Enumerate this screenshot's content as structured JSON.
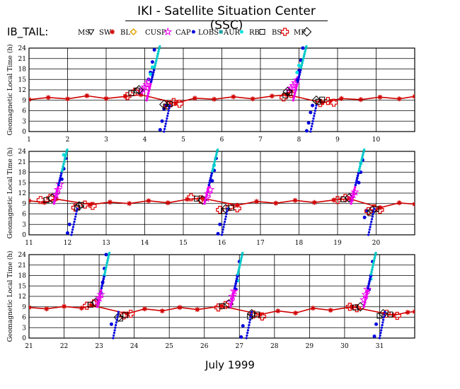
{
  "header": {
    "title": "IKI - Satellite Situation Center (SSC)",
    "region": "IB_TAIL:",
    "footer": "July    1999"
  },
  "legend": [
    {
      "label": "MS",
      "symbol": "triangle-down",
      "color": "#000000"
    },
    {
      "label": "SW",
      "symbol": "asterisk",
      "color": "#d00000"
    },
    {
      "label": "BL",
      "symbol": "diamond",
      "color": "#e0a000"
    },
    {
      "label": "CUSP",
      "symbol": "star",
      "color": "#ee00ee"
    },
    {
      "label": "CAP",
      "symbol": "dot",
      "color": "#0000dd"
    },
    {
      "label": "LOBS",
      "symbol": "square-small",
      "color": "#20a0a0"
    },
    {
      "label": "AUR",
      "symbol": "dot-cyan",
      "color": "#00e0e0"
    },
    {
      "label": "RB",
      "symbol": "square-open",
      "color": "#000000"
    },
    {
      "label": "BS",
      "symbol": "cross-open",
      "color": "#e00000"
    },
    {
      "label": "MP",
      "symbol": "diamond-open",
      "color": "#000000"
    }
  ],
  "chart_data": [
    {
      "type": "scatter",
      "ylabel": "Geomagnetic Local Time (h)",
      "xlim": [
        1,
        11
      ],
      "ylim": [
        0,
        24
      ],
      "yticks": [
        0,
        3,
        6,
        9,
        12,
        15,
        18,
        21,
        24
      ],
      "xticks": [
        1,
        2,
        3,
        4,
        5,
        6,
        7,
        8,
        9,
        10
      ],
      "xtick_labels": [
        "1",
        "2",
        "3",
        "4",
        "5",
        "6",
        "7",
        "8",
        "9",
        "10"
      ],
      "grid": true,
      "passes": [
        4.3,
        8.1
      ],
      "series": [
        {
          "name": "SW",
          "color": "#d00000",
          "x": [
            1.0,
            1.5,
            2.0,
            2.5,
            3.0,
            3.5,
            3.9,
            4.8,
            5.3,
            5.8,
            6.3,
            6.8,
            7.3,
            7.7,
            8.6,
            9.1,
            9.6,
            10.1,
            10.6,
            11.0
          ],
          "y": [
            9.2,
            9.8,
            9.4,
            10.3,
            9.5,
            10.1,
            10.6,
            8.2,
            9.6,
            9.3,
            10.0,
            9.4,
            10.2,
            10.6,
            8.3,
            9.5,
            9.2,
            9.9,
            9.4,
            10.1
          ]
        },
        {
          "name": "CAP",
          "color": "#0000dd",
          "x": [
            4.1,
            4.15,
            4.2,
            4.25,
            4.4,
            4.45,
            4.5,
            4.55,
            7.95,
            8.0,
            8.05,
            8.1,
            8.2,
            8.25,
            8.3,
            8.35
          ],
          "y": [
            15.0,
            17.0,
            20.0,
            23.5,
            0.5,
            3.0,
            6.5,
            7.5,
            15.0,
            17.5,
            20.5,
            24.0,
            0.2,
            2.5,
            5.5,
            7.5
          ]
        },
        {
          "name": "CUSP",
          "color": "#ee00ee",
          "x": [
            3.9,
            3.95,
            4.0,
            4.05,
            4.1,
            7.75,
            7.8,
            7.85,
            7.9,
            7.95
          ],
          "y": [
            11.5,
            12.0,
            12.8,
            13.5,
            14.3,
            11.8,
            12.5,
            13.2,
            14.0,
            14.8
          ]
        },
        {
          "name": "AUR",
          "color": "#00e0e0",
          "x": [
            4.15,
            4.2,
            7.95,
            8.0
          ],
          "y": [
            16.5,
            18.5,
            17.0,
            19.0
          ]
        },
        {
          "name": "BS",
          "color": "#e00000",
          "x": [
            3.55,
            3.75,
            4.6,
            4.75,
            4.9,
            7.6,
            7.8,
            8.55,
            8.75,
            8.9
          ],
          "y": [
            10.2,
            11.5,
            7.5,
            8.5,
            8.0,
            9.8,
            10.8,
            8.2,
            8.8,
            8.3
          ]
        },
        {
          "name": "MP",
          "color": "#000000",
          "x": [
            3.85,
            4.5,
            7.7,
            8.45
          ],
          "y": [
            12.0,
            7.8,
            11.5,
            9.0
          ]
        },
        {
          "name": "MS",
          "color": "#000000",
          "x": [
            3.65,
            3.8,
            4.55,
            4.65,
            7.65,
            7.75,
            8.5,
            8.6
          ],
          "y": [
            11.0,
            11.8,
            7.2,
            7.9,
            10.4,
            11.2,
            8.6,
            9.2
          ]
        }
      ]
    },
    {
      "type": "scatter",
      "ylabel": "Geomagnetic Local Time (h)",
      "xlim": [
        11,
        21
      ],
      "ylim": [
        0,
        24
      ],
      "yticks": [
        0,
        3,
        6,
        9,
        12,
        15,
        18,
        21,
        24
      ],
      "xticks": [
        11,
        12,
        13,
        14,
        15,
        16,
        17,
        18,
        19,
        20
      ],
      "xtick_labels": [
        "11",
        "12",
        "13",
        "14",
        "15",
        "16",
        "17",
        "18",
        "19",
        "20"
      ],
      "grid": true,
      "passes": [
        11.9,
        15.8,
        19.6
      ],
      "series": [
        {
          "name": "SW",
          "color": "#d00000",
          "x": [
            11.0,
            11.4,
            11.7,
            12.6,
            13.1,
            13.6,
            14.1,
            14.6,
            15.1,
            15.5,
            16.4,
            16.9,
            17.4,
            17.9,
            18.4,
            18.9,
            19.3,
            20.1,
            20.6,
            21.0
          ],
          "y": [
            9.8,
            9.3,
            10.3,
            8.7,
            9.4,
            9.0,
            9.8,
            9.2,
            10.2,
            10.5,
            8.5,
            9.6,
            9.1,
            9.9,
            9.3,
            10.0,
            10.4,
            7.8,
            9.2,
            8.8
          ]
        },
        {
          "name": "CAP",
          "color": "#0000dd",
          "x": [
            11.85,
            11.9,
            11.95,
            12.0,
            12.05,
            15.75,
            15.8,
            15.85,
            15.9,
            15.95,
            19.55,
            19.6,
            19.65,
            19.7,
            19.75
          ],
          "y": [
            16.0,
            19.0,
            22.0,
            0.5,
            3.0,
            15.5,
            18.5,
            22.0,
            0.3,
            3.0,
            15.0,
            18.0,
            21.5,
            5.0,
            7.0
          ]
        },
        {
          "name": "CUSP",
          "color": "#ee00ee",
          "x": [
            11.7,
            11.75,
            11.8,
            15.6,
            15.65,
            15.7,
            19.35,
            19.4,
            19.45
          ],
          "y": [
            11.5,
            13.0,
            14.5,
            10.5,
            11.8,
            13.0,
            10.5,
            11.5,
            12.3
          ]
        },
        {
          "name": "AUR",
          "color": "#00e0e0",
          "x": [
            11.9,
            15.8,
            19.6
          ],
          "y": [
            23.0,
            20.0,
            20.5
          ]
        },
        {
          "name": "BS",
          "color": "#e00000",
          "x": [
            11.3,
            11.55,
            12.2,
            12.45,
            12.65,
            15.2,
            15.45,
            15.95,
            16.2,
            16.4,
            19.0,
            19.2,
            19.8,
            19.95,
            20.1
          ],
          "y": [
            10.0,
            10.6,
            7.8,
            8.7,
            8.3,
            10.8,
            10.2,
            7.2,
            8.0,
            7.6,
            10.0,
            10.6,
            6.8,
            7.6,
            7.2
          ]
        },
        {
          "name": "MP",
          "color": "#000000",
          "x": [
            11.6,
            12.3,
            15.5,
            16.1,
            19.3,
            19.9
          ],
          "y": [
            10.5,
            8.3,
            10.0,
            7.5,
            10.6,
            7.0
          ]
        },
        {
          "name": "MS",
          "color": "#000000",
          "x": [
            11.45,
            12.25,
            12.35,
            15.35,
            16.05,
            16.25,
            19.15,
            19.85,
            20.0
          ],
          "y": [
            10.0,
            7.8,
            8.6,
            10.4,
            6.8,
            7.8,
            10.2,
            6.2,
            7.4
          ]
        }
      ]
    },
    {
      "type": "scatter",
      "ylabel": "Geomagnetic Local Time (h)",
      "xlim": [
        21,
        32
      ],
      "ylim": [
        0,
        24
      ],
      "yticks": [
        0,
        3,
        6,
        9,
        12,
        15,
        18,
        21,
        24
      ],
      "xticks": [
        21,
        22,
        23,
        24,
        25,
        26,
        27,
        28,
        29,
        30,
        31
      ],
      "xtick_labels": [
        "21",
        "22",
        "23",
        "24",
        "25",
        "26",
        "27",
        "28",
        "29",
        "30",
        "31"
      ],
      "grid": true,
      "passes": [
        23.2,
        27.0,
        30.8
      ],
      "series": [
        {
          "name": "SW",
          "color": "#d00000",
          "x": [
            21.0,
            21.5,
            22.0,
            22.5,
            22.8,
            23.8,
            24.3,
            24.8,
            25.3,
            25.8,
            26.5,
            27.6,
            28.1,
            28.6,
            29.1,
            29.6,
            30.2,
            31.4,
            31.8,
            32.0
          ],
          "y": [
            8.8,
            8.4,
            9.1,
            8.6,
            9.4,
            7.0,
            8.4,
            7.8,
            8.8,
            8.2,
            9.2,
            6.8,
            7.8,
            7.2,
            8.6,
            8.0,
            9.0,
            6.6,
            7.4,
            7.6
          ]
        },
        {
          "name": "CAP",
          "color": "#0000dd",
          "x": [
            23.05,
            23.1,
            23.15,
            23.2,
            23.35,
            26.9,
            26.95,
            27.0,
            27.05,
            27.1,
            30.7,
            30.75,
            30.8,
            30.85,
            30.9
          ],
          "y": [
            13.0,
            16.0,
            20.0,
            24.0,
            4.0,
            14.0,
            18.0,
            22.0,
            0.3,
            3.5,
            14.0,
            18.0,
            22.0,
            0.5,
            4.0
          ]
        },
        {
          "name": "CUSP",
          "color": "#ee00ee",
          "x": [
            22.95,
            23.0,
            23.05,
            26.75,
            26.8,
            26.85,
            30.55,
            30.6,
            30.65
          ],
          "y": [
            10.5,
            11.5,
            12.5,
            10.5,
            12.0,
            13.5,
            11.0,
            12.5,
            14.0
          ]
        },
        {
          "name": "AUR",
          "color": "#00e0e0",
          "x": [
            23.15,
            26.95,
            30.75
          ],
          "y": [
            18.0,
            16.5,
            17.0
          ]
        },
        {
          "name": "BS",
          "color": "#e00000",
          "x": [
            22.65,
            22.85,
            23.7,
            23.9,
            26.4,
            26.6,
            27.4,
            27.65,
            30.15,
            30.35,
            31.2,
            31.5
          ],
          "y": [
            9.3,
            10.0,
            6.5,
            7.0,
            8.8,
            9.5,
            6.8,
            6.2,
            9.0,
            8.6,
            7.0,
            6.4
          ]
        },
        {
          "name": "MP",
          "color": "#000000",
          "x": [
            22.9,
            23.55,
            26.7,
            27.35,
            30.45,
            31.1
          ],
          "y": [
            10.2,
            6.0,
            9.8,
            7.0,
            9.0,
            7.0
          ]
        },
        {
          "name": "MS",
          "color": "#000000",
          "x": [
            22.75,
            23.6,
            23.75,
            26.5,
            27.3,
            27.5,
            30.3,
            31.0,
            31.3
          ],
          "y": [
            9.6,
            5.6,
            6.6,
            9.2,
            6.2,
            6.8,
            8.8,
            6.4,
            6.8
          ]
        }
      ]
    }
  ]
}
